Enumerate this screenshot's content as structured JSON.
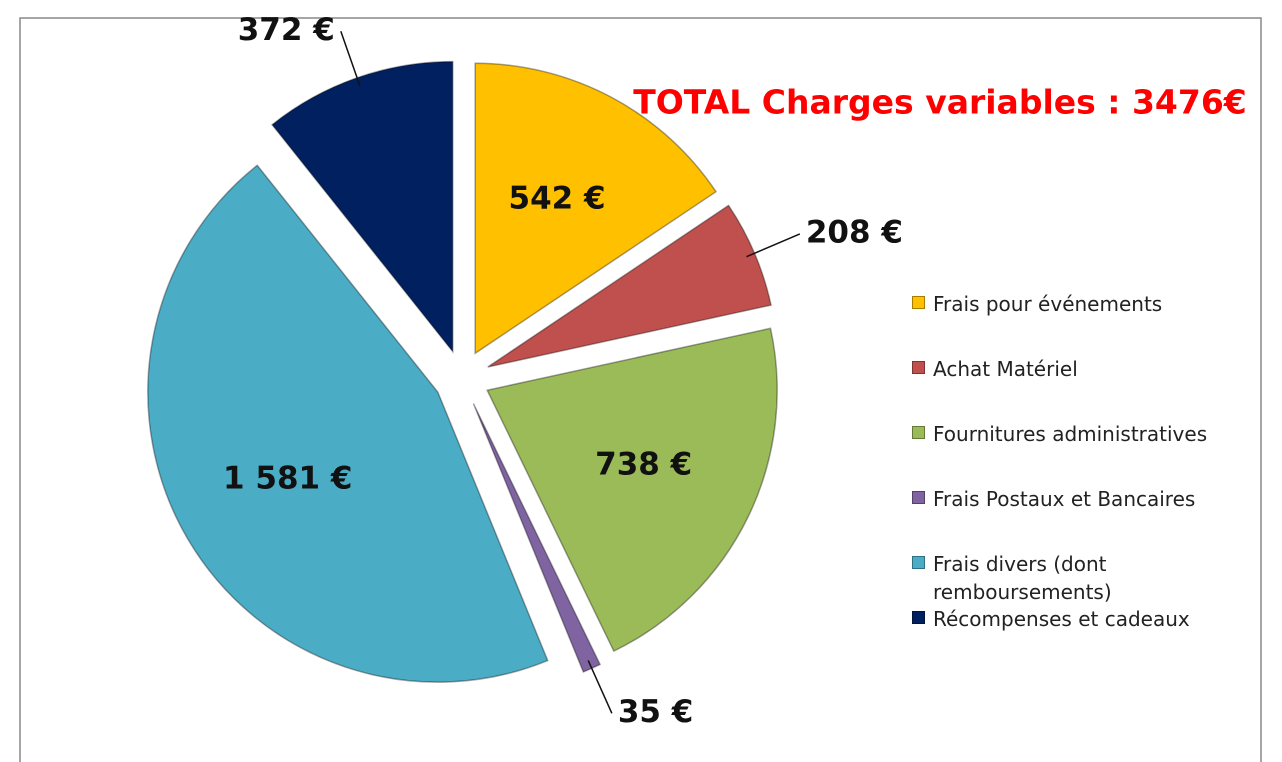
{
  "chart_data": {
    "type": "pie",
    "title": "TOTAL Charges variables : 3476€",
    "categories": [
      "Frais pour événements",
      "Achat Matériel",
      "Fournitures administratives",
      "Frais Postaux et Bancaires",
      "Frais divers (dont remboursements)",
      "Récompenses et cadeaux"
    ],
    "values": [
      542,
      208,
      738,
      35,
      1581,
      372
    ],
    "value_labels": [
      "542 €",
      "208 €",
      "738 €",
      "35 €",
      "1 581 €",
      "372 €"
    ],
    "colors": [
      "#ffc000",
      "#c0504d",
      "#9bbb59",
      "#8064a2",
      "#4bacc6",
      "#002060"
    ],
    "legend": "right"
  }
}
